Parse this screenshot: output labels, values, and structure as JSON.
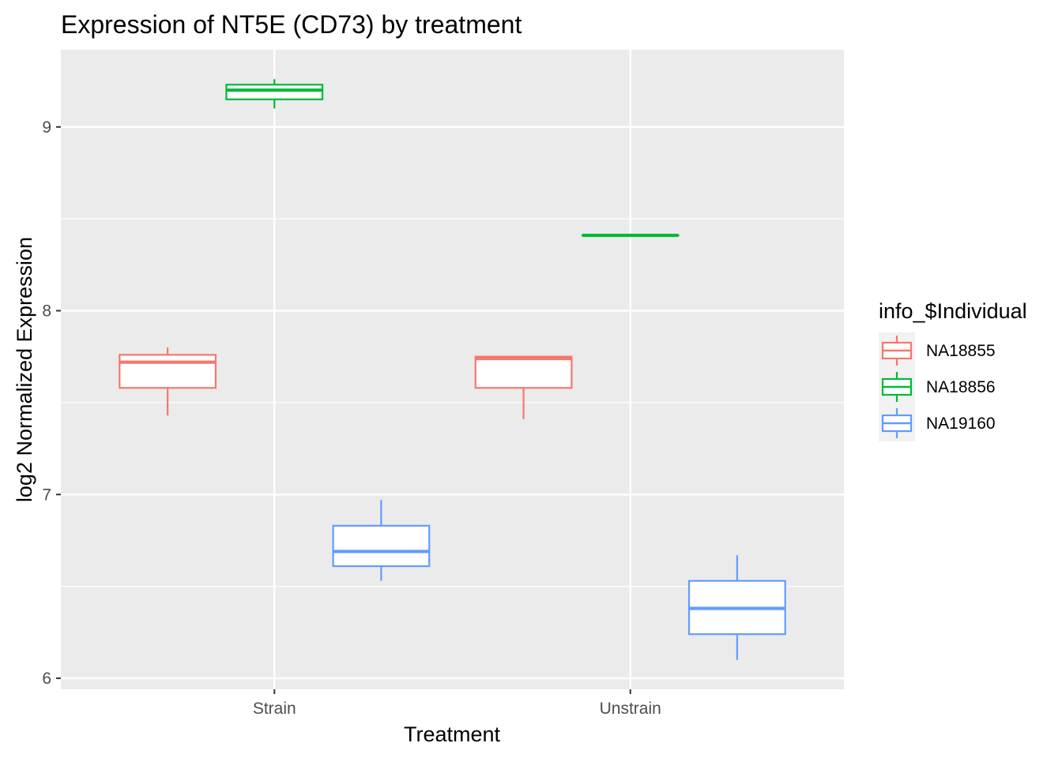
{
  "chart_data": {
    "type": "boxplot",
    "title": "Expression of NT5E (CD73) by treatment",
    "xlabel": "Treatment",
    "ylabel": "log2 Normalized Expression",
    "categories": [
      "Strain",
      "Unstrain"
    ],
    "ylim": [
      5.94,
      9.42
    ],
    "yticks": [
      6,
      7,
      8,
      9
    ],
    "grid": true,
    "legend": {
      "title": "info_$Individual",
      "position": "right"
    },
    "series": [
      {
        "name": "NA18855",
        "color": "#F8766D",
        "boxes": [
          {
            "category": "Strain",
            "min": 7.43,
            "q1": 7.58,
            "median": 7.72,
            "q3": 7.76,
            "max": 7.8
          },
          {
            "category": "Unstrain",
            "min": 7.41,
            "q1": 7.58,
            "median": 7.74,
            "q3": 7.75,
            "max": 7.75
          }
        ]
      },
      {
        "name": "NA18856",
        "color": "#00BA38",
        "boxes": [
          {
            "category": "Strain",
            "min": 9.1,
            "q1": 9.15,
            "median": 9.2,
            "q3": 9.23,
            "max": 9.26
          },
          {
            "category": "Unstrain",
            "min": 8.41,
            "q1": 8.41,
            "median": 8.41,
            "q3": 8.41,
            "max": 8.41
          }
        ]
      },
      {
        "name": "NA19160",
        "color": "#619CFF",
        "boxes": [
          {
            "category": "Strain",
            "min": 6.53,
            "q1": 6.61,
            "median": 6.69,
            "q3": 6.83,
            "max": 6.97
          },
          {
            "category": "Unstrain",
            "min": 6.1,
            "q1": 6.24,
            "median": 6.38,
            "q3": 6.53,
            "max": 6.67
          }
        ]
      }
    ]
  }
}
